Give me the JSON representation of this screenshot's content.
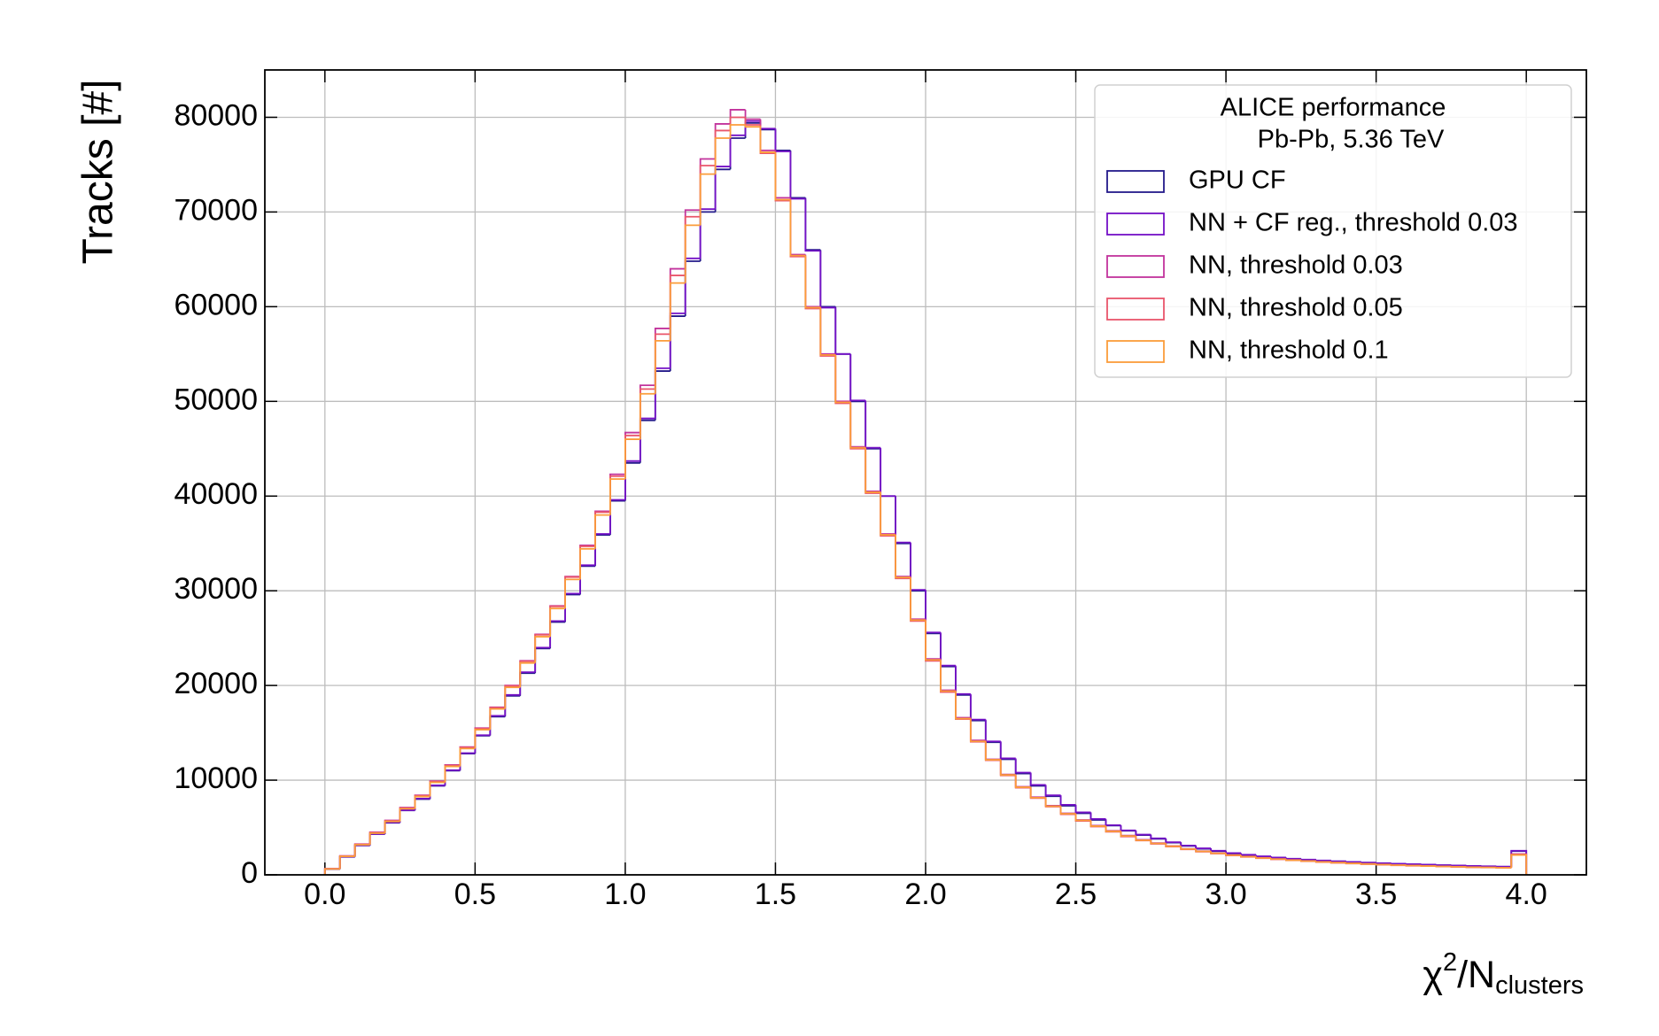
{
  "chart_data": {
    "type": "histogram",
    "legend_title": [
      "ALICE performance",
      "Pb-Pb, 5.36 TeV"
    ],
    "xlabel_parts": [
      "χ",
      "2",
      "/N",
      "clusters"
    ],
    "ylabel": "Tracks [#]",
    "legend": "upper right",
    "grid": true,
    "xlim": [
      -0.2,
      4.2
    ],
    "ylim": [
      0,
      85000
    ],
    "xticks": [
      {
        "value": 0,
        "label": "0.0"
      },
      0.5,
      {
        "value": 1,
        "label": "1.0"
      },
      1.5,
      {
        "value": 2,
        "label": "2.0"
      },
      2.5,
      {
        "value": 3,
        "label": "3.0"
      },
      3.5,
      {
        "value": 4,
        "label": "4.0"
      }
    ],
    "yticks": [
      0,
      10000,
      20000,
      30000,
      40000,
      50000,
      60000,
      70000,
      80000
    ],
    "bins": [
      0,
      0.05,
      0.1,
      0.15,
      0.2,
      0.25,
      0.3,
      0.35,
      0.4,
      0.45,
      0.5,
      0.55,
      0.6,
      0.65,
      0.7,
      0.75,
      0.8,
      0.85,
      0.9,
      0.95,
      1,
      1.05,
      1.1,
      1.15,
      1.2,
      1.25,
      1.3,
      1.35,
      1.4,
      1.45,
      1.5,
      1.55,
      1.6,
      1.65,
      1.7,
      1.75,
      1.8,
      1.85,
      1.9,
      1.95,
      2,
      2.05,
      2.1,
      2.15,
      2.2,
      2.25,
      2.3,
      2.35,
      2.4,
      2.45,
      2.5,
      2.55,
      2.6,
      2.65,
      2.7,
      2.75,
      2.8,
      2.85,
      2.9,
      2.95,
      3,
      3.05,
      3.1,
      3.15,
      3.2,
      3.25,
      3.3,
      3.35,
      3.4,
      3.45,
      3.5,
      3.55,
      3.6,
      3.65,
      3.7,
      3.75,
      3.8,
      3.85,
      3.9,
      3.95,
      4
    ],
    "series": [
      {
        "name": "GPU CF",
        "color": "#23198a",
        "values": [
          600,
          1900,
          3100,
          4300,
          5500,
          6800,
          8000,
          9400,
          11000,
          12800,
          14700,
          16700,
          18900,
          21300,
          23900,
          26700,
          29600,
          32600,
          35900,
          39500,
          43500,
          48000,
          53200,
          59000,
          64800,
          70000,
          74500,
          77800,
          79400,
          78700,
          76500,
          71500,
          66000,
          60000,
          55000,
          50000,
          45000,
          40000,
          35000,
          30000,
          25500,
          22000,
          19000,
          16300,
          14000,
          12200,
          10700,
          9400,
          8300,
          7300,
          6500,
          5800,
          5200,
          4650,
          4200,
          3800,
          3400,
          3050,
          2750,
          2500,
          2250,
          2080,
          1930,
          1800,
          1690,
          1590,
          1500,
          1420,
          1350,
          1280,
          1220,
          1160,
          1110,
          1060,
          1010,
          970,
          930,
          890,
          850,
          2500
        ]
      },
      {
        "name": "NN + CF reg., threshold 0.03",
        "color": "#7411c6",
        "values": [
          620,
          1920,
          3120,
          4320,
          5530,
          6830,
          8050,
          9450,
          11050,
          12850,
          14750,
          16800,
          19000,
          21400,
          24000,
          26800,
          29700,
          32700,
          36000,
          39600,
          43700,
          48200,
          53500,
          59300,
          65100,
          70300,
          74800,
          78100,
          79600,
          78800,
          76400,
          71400,
          65900,
          59900,
          55000,
          50100,
          45100,
          40000,
          35100,
          30100,
          25600,
          22100,
          19100,
          16400,
          14100,
          12300,
          10800,
          9500,
          8400,
          7400,
          6600,
          5900,
          5250,
          4700,
          4250,
          3850,
          3450,
          3100,
          2800,
          2550,
          2300,
          2120,
          1960,
          1830,
          1710,
          1610,
          1520,
          1440,
          1370,
          1300,
          1240,
          1180,
          1130,
          1080,
          1030,
          990,
          950,
          910,
          870,
          2550
        ]
      },
      {
        "name": "NN, threshold 0.03",
        "color": "#c2339c",
        "values": [
          650,
          2000,
          3250,
          4500,
          5750,
          7100,
          8400,
          9900,
          11600,
          13500,
          15500,
          17700,
          20000,
          22600,
          25400,
          28400,
          31500,
          34800,
          38400,
          42300,
          46700,
          51700,
          57700,
          64000,
          70200,
          75600,
          79300,
          80800,
          79800,
          76500,
          71500,
          65500,
          60000,
          55000,
          50000,
          45200,
          40500,
          36000,
          31500,
          27000,
          22800,
          19500,
          16600,
          14200,
          12200,
          10600,
          9300,
          8200,
          7300,
          6500,
          5800,
          5200,
          4650,
          4150,
          3700,
          3350,
          3050,
          2750,
          2500,
          2300,
          2100,
          1950,
          1800,
          1680,
          1570,
          1470,
          1380,
          1300,
          1230,
          1160,
          1100,
          1040,
          990,
          940,
          900,
          860,
          820,
          790,
          760,
          2200
        ]
      },
      {
        "name": "NN, threshold 0.05",
        "color": "#e9566b",
        "values": [
          640,
          1980,
          3220,
          4460,
          5700,
          7050,
          8350,
          9850,
          11550,
          13450,
          15450,
          17650,
          19950,
          22550,
          25350,
          28350,
          31450,
          34700,
          38300,
          42100,
          46400,
          51300,
          57100,
          63300,
          69500,
          74900,
          78600,
          80000,
          79200,
          76200,
          71200,
          65300,
          59800,
          54800,
          49800,
          45000,
          40300,
          35800,
          31300,
          26800,
          22600,
          19300,
          16450,
          14050,
          12100,
          10500,
          9200,
          8100,
          7200,
          6400,
          5700,
          5100,
          4550,
          4050,
          3620,
          3280,
          2980,
          2690,
          2450,
          2250,
          2050,
          1900,
          1760,
          1640,
          1530,
          1440,
          1350,
          1270,
          1200,
          1130,
          1070,
          1010,
          960,
          920,
          880,
          840,
          800,
          770,
          740,
          2150
        ]
      },
      {
        "name": "NN, threshold 0.1",
        "color": "#fb9c3a",
        "values": [
          620,
          1950,
          3180,
          4400,
          5640,
          6980,
          8270,
          9760,
          11450,
          13340,
          15330,
          17520,
          19800,
          22380,
          25150,
          28130,
          31200,
          34430,
          38000,
          41800,
          46000,
          50800,
          56400,
          62500,
          68600,
          74000,
          77800,
          79200,
          79000,
          76300,
          71300,
          65400,
          59900,
          54900,
          49900,
          45100,
          40400,
          35900,
          31400,
          26900,
          22700,
          19400,
          16500,
          14100,
          12150,
          10550,
          9250,
          8150,
          7250,
          6450,
          5750,
          5150,
          4600,
          4100,
          3660,
          3320,
          3020,
          2720,
          2480,
          2280,
          2080,
          1920,
          1780,
          1660,
          1550,
          1460,
          1370,
          1290,
          1220,
          1150,
          1090,
          1030,
          980,
          930,
          890,
          850,
          810,
          780,
          750,
          2100
        ]
      }
    ]
  }
}
